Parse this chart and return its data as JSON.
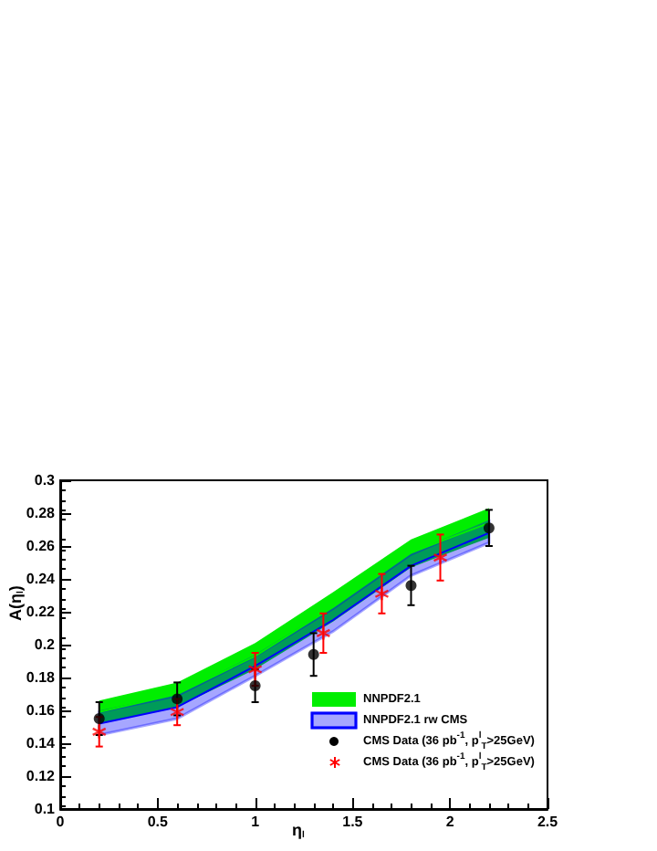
{
  "chart_data": {
    "type": "line",
    "xlabel": "η$_{l}$",
    "ylabel": "A(η$_{l}$)",
    "xlim": [
      0,
      2.5
    ],
    "xticks": [
      0,
      0.5,
      1,
      1.5,
      2,
      2.5
    ],
    "ylim": [
      0.1,
      0.3
    ],
    "yticks": [
      0.1,
      0.12,
      0.14,
      0.16,
      0.18,
      0.2,
      0.22,
      0.24,
      0.26,
      0.28,
      0.3
    ],
    "grid": false,
    "legend": "bottom right",
    "series": [
      {
        "name": "NNPDF2.1",
        "color": "#00ee00",
        "x": [
          0.2,
          0.6,
          1.0,
          1.4,
          1.8,
          2.2
        ],
        "values": [
          0.159,
          0.17,
          0.193,
          0.223,
          0.256,
          0.274
        ],
        "lower": [
          0.152,
          0.162,
          0.185,
          0.214,
          0.247,
          0.265
        ],
        "upper": [
          0.166,
          0.177,
          0.201,
          0.232,
          0.264,
          0.283
        ]
      },
      {
        "name": "NNPDF2.1 rw CMS",
        "color": "#0000ff",
        "x": [
          0.2,
          0.6,
          1.0,
          1.4,
          1.8,
          2.2
        ],
        "values": [
          0.152,
          0.162,
          0.187,
          0.215,
          0.248,
          0.268
        ],
        "lower": [
          0.145,
          0.155,
          0.181,
          0.208,
          0.242,
          0.262
        ],
        "upper": [
          0.159,
          0.169,
          0.193,
          0.222,
          0.255,
          0.275
        ]
      },
      {
        "name": "CMS Data (36 pb$^{-1}$, p$^{l}$$_{T}$>25GeV)",
        "type": "scatter",
        "marker": "circle",
        "color": "#000000",
        "x": [
          0.2,
          0.6,
          1.0,
          1.3,
          1.8,
          2.2
        ],
        "values": [
          0.155,
          0.167,
          0.175,
          0.194,
          0.236,
          0.271
        ],
        "errors": [
          0.01,
          0.01,
          0.01,
          0.013,
          0.012,
          0.011
        ]
      },
      {
        "name": "CMS Data (36 pb$^{-1}$, p$^{l}$$_{T}$>25GeV)",
        "type": "scatter",
        "marker": "cross",
        "color": "#ff0000",
        "x": [
          0.2,
          0.6,
          1.0,
          1.35,
          1.65,
          1.95
        ],
        "values": [
          0.147,
          0.159,
          0.185,
          0.207,
          0.231,
          0.253
        ],
        "errors": [
          0.009,
          0.008,
          0.01,
          0.012,
          0.012,
          0.014
        ]
      }
    ]
  }
}
